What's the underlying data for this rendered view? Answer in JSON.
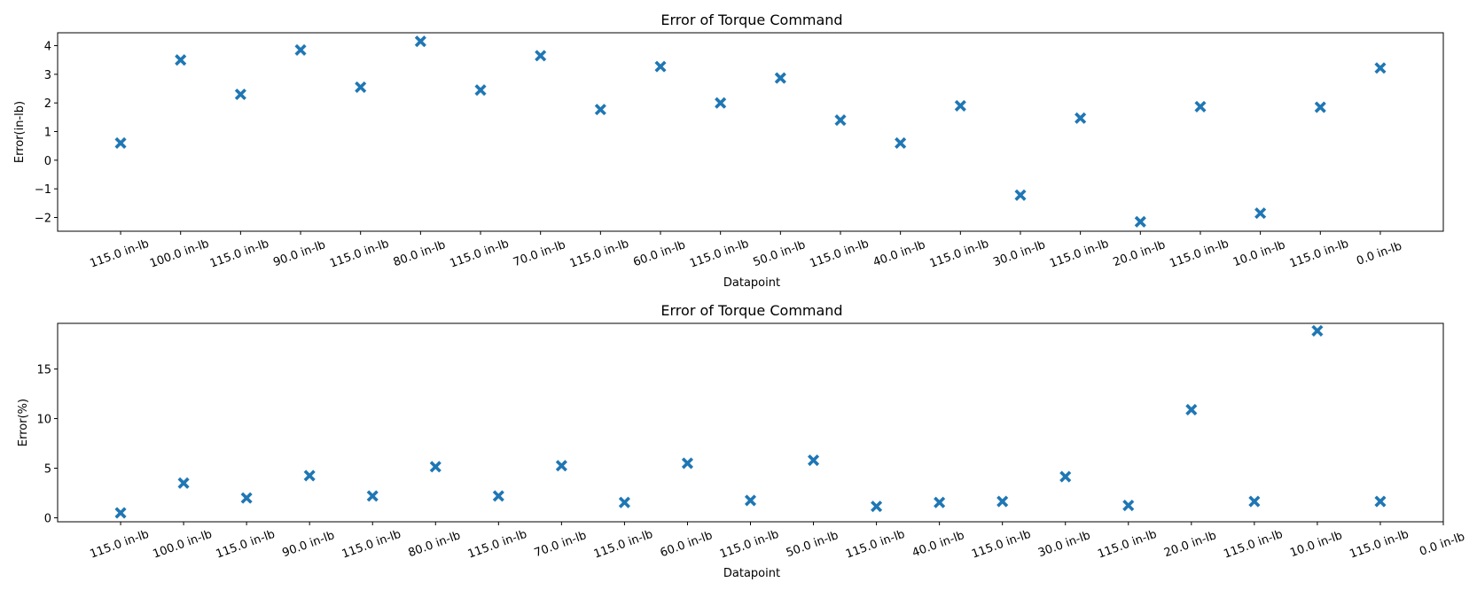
{
  "figure": {
    "background": "#ffffff",
    "marker_color": "#1f77b4",
    "marker": "X"
  },
  "chart_data": [
    {
      "type": "scatter",
      "title": "Error of Torque Command",
      "xlabel": "Datapoint",
      "ylabel": "Error(in-lb)",
      "grid": false,
      "legend": null,
      "xtick_labels": [
        "115.0 in-lb",
        "100.0 in-lb",
        "115.0 in-lb",
        "90.0 in-lb",
        "115.0 in-lb",
        "80.0 in-lb",
        "115.0 in-lb",
        "70.0 in-lb",
        "115.0 in-lb",
        "60.0 in-lb",
        "115.0 in-lb",
        "50.0 in-lb",
        "115.0 in-lb",
        "40.0 in-lb",
        "115.0 in-lb",
        "30.0 in-lb",
        "115.0 in-lb",
        "20.0 in-lb",
        "115.0 in-lb",
        "10.0 in-lb",
        "115.0 in-lb",
        "0.0 in-lb"
      ],
      "yticks": [
        -2,
        -1,
        0,
        1,
        2,
        3,
        4
      ],
      "ytick_labels": [
        "−2",
        "−1",
        "0",
        "1",
        "2",
        "3",
        "4"
      ],
      "xlim": [
        -1.05,
        22.05
      ],
      "ylim": [
        -2.48,
        4.45
      ],
      "series": [
        {
          "x": [
            0,
            1,
            2,
            3,
            4,
            5,
            6,
            7,
            8,
            9,
            10,
            11,
            12,
            13,
            14,
            15,
            16,
            17,
            18,
            19,
            20,
            21
          ],
          "y": [
            0.6,
            3.5,
            2.3,
            3.85,
            2.55,
            4.15,
            2.45,
            3.65,
            1.77,
            3.27,
            2.0,
            2.87,
            1.4,
            0.6,
            1.9,
            -1.22,
            1.47,
            -2.15,
            1.87,
            -1.85,
            1.85,
            3.22
          ]
        }
      ]
    },
    {
      "type": "scatter",
      "title": "Error of Torque Command",
      "xlabel": "Datapoint",
      "ylabel": "Error(%)",
      "grid": false,
      "legend": null,
      "xtick_labels": [
        "115.0 in-lb",
        "100.0 in-lb",
        "115.0 in-lb",
        "90.0 in-lb",
        "115.0 in-lb",
        "80.0 in-lb",
        "115.0 in-lb",
        "70.0 in-lb",
        "115.0 in-lb",
        "60.0 in-lb",
        "115.0 in-lb",
        "50.0 in-lb",
        "115.0 in-lb",
        "40.0 in-lb",
        "115.0 in-lb",
        "30.0 in-lb",
        "115.0 in-lb",
        "20.0 in-lb",
        "115.0 in-lb",
        "10.0 in-lb",
        "115.0 in-lb",
        "0.0 in-lb"
      ],
      "yticks": [
        0,
        5,
        10,
        15
      ],
      "ytick_labels": [
        "0",
        "5",
        "10",
        "15"
      ],
      "xlim": [
        -1.0,
        21.0
      ],
      "ylim": [
        -0.4,
        19.6
      ],
      "series": [
        {
          "x": [
            0,
            1,
            2,
            3,
            4,
            5,
            6,
            7,
            8,
            9,
            10,
            11,
            12,
            13,
            14,
            15,
            16,
            17,
            18,
            19,
            20
          ],
          "y": [
            0.5,
            3.5,
            2.0,
            4.25,
            2.2,
            5.15,
            2.2,
            5.25,
            1.55,
            5.5,
            1.75,
            5.8,
            1.15,
            1.55,
            1.65,
            4.15,
            1.25,
            10.9,
            1.65,
            18.85,
            1.65
          ]
        }
      ]
    }
  ]
}
